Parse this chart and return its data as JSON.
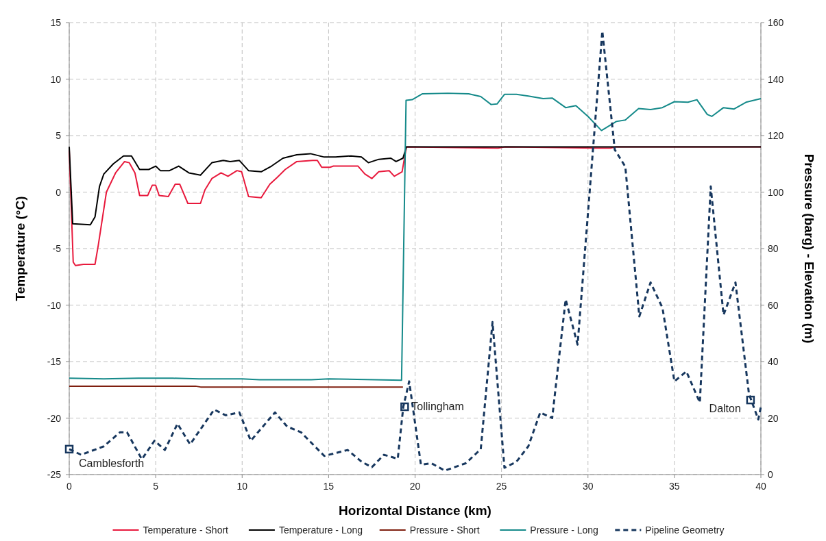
{
  "chart_data": {
    "type": "line",
    "xlabel": "Horizontal Distance (km)",
    "ylabel": "Temperature (°C)",
    "y2label": "Pressure (barg) - Elevation (m)",
    "xlim": [
      0,
      40
    ],
    "xticks": [
      0,
      5,
      10,
      15,
      20,
      25,
      30,
      35,
      40
    ],
    "ylim": [
      -25,
      15
    ],
    "yticks": [
      -25,
      -20,
      -15,
      -10,
      -5,
      0,
      5,
      10,
      15
    ],
    "y2lim": [
      0,
      160
    ],
    "y2ticks": [
      0,
      20,
      40,
      60,
      80,
      100,
      120,
      140,
      160
    ],
    "grid": true,
    "legend": "bottom",
    "marker": "none",
    "series": [
      {
        "name": "Temperature - Short",
        "color": "#e8193c",
        "line_style": "solid",
        "x": [
          0,
          0.23,
          0.36,
          0.82,
          1.49,
          1.68,
          2.15,
          2.68,
          3.2,
          3.47,
          3.8,
          4.07,
          4.54,
          4.8,
          5.0,
          5.2,
          5.73,
          6.13,
          6.39,
          6.86,
          7.59,
          7.85,
          8.25,
          8.78,
          9.18,
          9.7,
          9.97,
          10.37,
          11.1,
          11.6,
          12.03,
          12.49,
          13.16,
          14.08,
          14.35,
          14.6,
          15.08,
          15.28,
          16.7,
          17.1,
          17.5,
          17.9,
          18.5,
          18.8,
          19.25,
          19.5,
          24.8,
          25.2,
          30.5,
          31.3,
          31.6,
          40
        ],
        "values": [
          3.7,
          -6.2,
          -6.5,
          -6.4,
          -6.4,
          -4.7,
          0,
          1.7,
          2.7,
          2.6,
          1.7,
          -0.3,
          -0.3,
          0.6,
          0.6,
          -0.3,
          -0.4,
          0.7,
          0.7,
          -1.0,
          -1.0,
          0.2,
          1.2,
          1.7,
          1.4,
          1.9,
          1.8,
          -0.4,
          -0.5,
          0.7,
          1.3,
          2.0,
          2.7,
          2.8,
          2.8,
          2.2,
          2.2,
          2.3,
          2.3,
          1.6,
          1.2,
          1.8,
          1.9,
          1.4,
          1.8,
          4.0,
          3.9,
          4.0,
          3.9,
          3.9,
          4.0,
          4.0
        ]
      },
      {
        "name": "Temperature - Long",
        "color": "#000000",
        "line_style": "solid",
        "x": [
          0,
          0.2,
          1.22,
          1.49,
          1.75,
          2.0,
          2.55,
          3.14,
          3.6,
          4.07,
          4.6,
          5.0,
          5.27,
          5.8,
          6.33,
          6.92,
          7.59,
          8.25,
          8.91,
          9.31,
          9.84,
          10.37,
          11.1,
          11.7,
          12.36,
          13.16,
          13.95,
          14.75,
          15.4,
          16.3,
          16.9,
          17.3,
          17.9,
          18.6,
          18.9,
          19.3,
          19.5,
          40
        ],
        "values": [
          4.0,
          -2.8,
          -2.9,
          -2.2,
          0.5,
          1.6,
          2.5,
          3.2,
          3.2,
          2.0,
          2.0,
          2.3,
          1.9,
          1.9,
          2.3,
          1.7,
          1.5,
          2.6,
          2.8,
          2.7,
          2.8,
          1.9,
          1.8,
          2.3,
          3.0,
          3.3,
          3.4,
          3.1,
          3.1,
          3.2,
          3.1,
          2.6,
          2.9,
          3.0,
          2.7,
          3.0,
          4.0,
          4.0
        ]
      },
      {
        "name": "Pressure - Short",
        "color": "#7f1f0f",
        "line_style": "solid",
        "axis": "y2",
        "x": [
          0,
          7.3,
          7.6,
          19.3
        ],
        "values": [
          31.3,
          31.3,
          31.0,
          31.0
        ]
      },
      {
        "name": "Pressure - Long",
        "color": "#158a8a",
        "line_style": "solid",
        "axis": "y2",
        "x": [
          0,
          2,
          4,
          6,
          7.5,
          10,
          11,
          14,
          15,
          19.22,
          19.48,
          19.83,
          20.43,
          21.9,
          23.1,
          23.8,
          24.4,
          24.74,
          25.17,
          25.86,
          26.55,
          27.41,
          27.93,
          28.71,
          29.3,
          30.0,
          30.78,
          31.64,
          32.16,
          32.93,
          33.62,
          34.3,
          35.0,
          35.78,
          36.3,
          36.9,
          37.16,
          37.84,
          38.45,
          39.14,
          40
        ],
        "values": [
          34.1,
          33.9,
          34.1,
          34.1,
          33.9,
          33.9,
          33.6,
          33.6,
          33.9,
          33.4,
          132.5,
          132.7,
          134.8,
          135.0,
          134.8,
          133.8,
          131.0,
          131.2,
          134.6,
          134.6,
          134.0,
          133.1,
          133.3,
          129.9,
          130.6,
          126.8,
          121.8,
          125.0,
          125.5,
          129.6,
          129.2,
          129.9,
          132.0,
          131.8,
          132.7,
          127.5,
          126.8,
          129.9,
          129.4,
          131.8,
          133.1
        ]
      },
      {
        "type": "scatter",
        "color": "#17375e",
        "marker": "square",
        "axis": "y2",
        "x": [
          0,
          19.4,
          39.4
        ],
        "values": [
          9,
          24,
          26.4
        ]
      },
      {
        "name": "Pipeline Geometry",
        "color": "#17375e",
        "line_style": "dashed",
        "axis": "y2",
        "x": [
          0,
          0.69,
          2.0,
          2.94,
          3.34,
          4.2,
          4.93,
          5.53,
          6.26,
          6.99,
          8.38,
          9.05,
          9.84,
          10.5,
          11.9,
          12.6,
          13.4,
          14.75,
          16.1,
          16.9,
          17.5,
          18.2,
          19.0,
          19.32,
          19.66,
          20.34,
          20.95,
          21.72,
          22.93,
          23.8,
          24.48,
          25.17,
          25.86,
          26.55,
          27.24,
          27.93,
          28.71,
          29.4,
          30.83,
          31.55,
          32.16,
          32.97,
          33.62,
          34.31,
          35.0,
          35.69,
          36.47,
          37.1,
          37.84,
          38.53,
          39.31,
          39.85,
          40
        ],
        "values": [
          9,
          7,
          10,
          15,
          15,
          5.4,
          12,
          8.7,
          18,
          10.7,
          23,
          21,
          22,
          12,
          22,
          17,
          15,
          6.6,
          8.7,
          4.6,
          2.6,
          7,
          5.6,
          24,
          33,
          3.5,
          4,
          1.4,
          4,
          9,
          54,
          2.4,
          4.5,
          10,
          22,
          20,
          62,
          46,
          157,
          115,
          109,
          56,
          68,
          59,
          33,
          36.5,
          25.5,
          102,
          56.5,
          68,
          28.6,
          19.5,
          24
        ]
      }
    ],
    "annotations": [
      "Camblesforth",
      "Tollingham",
      "Dalton"
    ]
  }
}
